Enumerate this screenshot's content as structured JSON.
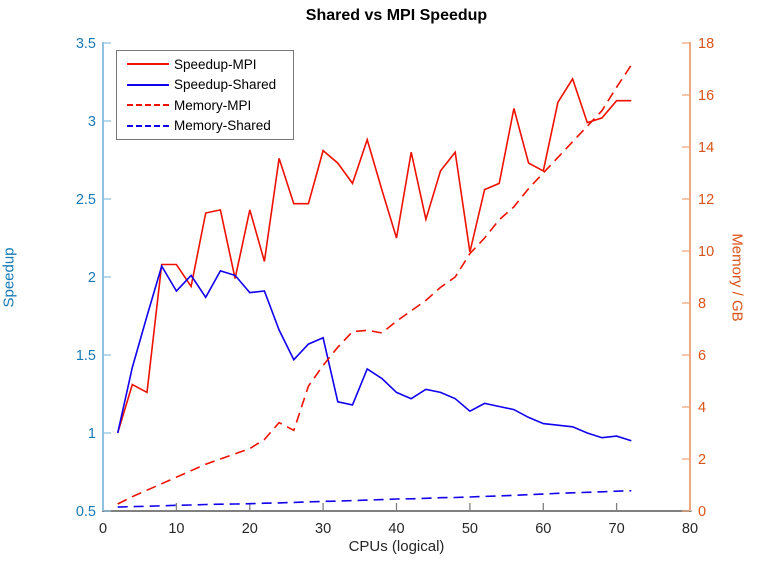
{
  "title": "Shared vs MPI Speedup",
  "chart_data": {
    "type": "line",
    "title": "Shared vs MPI Speedup",
    "xlabel": "CPUs (logical)",
    "ylabel_left": "Speedup",
    "ylabel_right": "Memory / GB",
    "grid": false,
    "legend_position": "top-left",
    "x_range": [
      0,
      80
    ],
    "x_ticks": [
      0,
      10,
      20,
      30,
      40,
      50,
      60,
      70,
      80
    ],
    "y_left_range": [
      0.5,
      3.5
    ],
    "y_left_ticks": [
      0.5,
      1,
      1.5,
      2,
      2.5,
      3,
      3.5
    ],
    "y_right_range": [
      0,
      18
    ],
    "y_right_ticks": [
      0,
      2,
      4,
      6,
      8,
      10,
      12,
      14,
      16,
      18
    ],
    "axis_colors": {
      "left_line": "#8fc2e1",
      "left_text": "#1779b5",
      "right_line": "#f0a97e",
      "right_text": "#d95319",
      "bottom_line": "#808080",
      "bottom_text": "#262626"
    },
    "x": [
      2,
      4,
      6,
      8,
      10,
      12,
      14,
      16,
      18,
      20,
      22,
      24,
      26,
      28,
      30,
      32,
      34,
      36,
      38,
      40,
      42,
      44,
      46,
      48,
      50,
      52,
      54,
      56,
      58,
      60,
      62,
      64,
      66,
      68,
      70,
      72
    ],
    "series": [
      {
        "label": "Speedup-MPI",
        "color": "#ee1100",
        "dash": "solid",
        "axis": "left",
        "values": [
          1.0,
          1.31,
          1.26,
          2.08,
          2.08,
          1.94,
          2.41,
          2.43,
          1.99,
          2.43,
          2.1,
          2.76,
          2.47,
          2.47,
          2.81,
          2.73,
          2.6,
          2.88,
          2.56,
          2.25,
          2.8,
          2.37,
          2.68,
          2.8,
          2.16,
          2.56,
          2.6,
          3.08,
          2.73,
          2.68,
          3.12,
          3.27,
          2.99,
          3.02,
          3.13,
          3.13
        ]
      },
      {
        "label": "Speedup-Shared",
        "color": "#1100ee",
        "dash": "solid",
        "axis": "left",
        "values": [
          1.0,
          1.42,
          1.75,
          2.07,
          1.91,
          2.01,
          1.87,
          2.04,
          2.01,
          1.9,
          1.91,
          1.66,
          1.47,
          1.57,
          1.61,
          1.2,
          1.18,
          1.41,
          1.35,
          1.26,
          1.22,
          1.28,
          1.26,
          1.22,
          1.14,
          1.19,
          1.17,
          1.15,
          1.1,
          1.06,
          1.05,
          1.04,
          1.0,
          0.97,
          0.98,
          0.95
        ]
      },
      {
        "label": "Memory-MPI",
        "color": "#ee1100",
        "dash": "dashed",
        "axis": "right",
        "values": [
          0.27,
          0.55,
          0.8,
          1.05,
          1.3,
          1.55,
          1.8,
          2.0,
          2.2,
          2.4,
          2.75,
          3.4,
          3.1,
          4.8,
          5.6,
          6.3,
          6.9,
          6.95,
          6.85,
          7.3,
          7.7,
          8.1,
          8.6,
          9.0,
          9.9,
          10.5,
          11.2,
          11.7,
          12.4,
          13.0,
          13.6,
          14.2,
          14.8,
          15.4,
          16.3,
          17.15
        ]
      },
      {
        "label": "Memory-Shared",
        "color": "#1100ee",
        "dash": "dashed",
        "axis": "right",
        "values": [
          0.15,
          0.17,
          0.18,
          0.2,
          0.22,
          0.23,
          0.25,
          0.26,
          0.27,
          0.28,
          0.3,
          0.31,
          0.33,
          0.35,
          0.37,
          0.38,
          0.4,
          0.42,
          0.44,
          0.46,
          0.47,
          0.49,
          0.51,
          0.52,
          0.54,
          0.56,
          0.58,
          0.6,
          0.63,
          0.65,
          0.68,
          0.7,
          0.72,
          0.74,
          0.76,
          0.78
        ]
      }
    ]
  }
}
